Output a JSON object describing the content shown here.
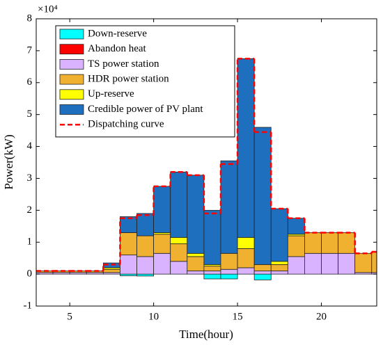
{
  "chart_data": {
    "type": "stacked-bar",
    "xlabel": "Time(hour)",
    "ylabel": "Power(kW)",
    "y_multiplier": "×10⁴",
    "x": [
      3,
      4,
      5,
      6,
      7,
      8,
      9,
      10,
      11,
      12,
      13,
      14,
      15,
      16,
      17,
      18,
      19,
      20,
      21,
      22,
      23
    ],
    "bar_width": 1,
    "series": [
      {
        "name": "Down-reserve",
        "color": "#00ffff",
        "values": [
          0,
          0,
          0,
          0,
          0,
          -500,
          -600,
          0,
          0,
          0,
          -1500,
          -1500,
          0,
          -1800,
          0,
          0,
          0,
          0,
          0,
          0,
          0
        ]
      },
      {
        "name": "Abandon heat",
        "color": "#ff0000",
        "values": [
          0,
          0,
          0,
          0,
          0,
          0,
          0,
          0,
          0,
          0,
          0,
          0,
          0,
          0,
          0,
          0,
          0,
          0,
          0,
          0,
          0
        ]
      },
      {
        "name": "TS power station",
        "color": "#d9b3ff",
        "values": [
          500,
          500,
          500,
          500,
          500,
          6000,
          5500,
          6500,
          4000,
          1000,
          1000,
          1500,
          2000,
          1000,
          1000,
          5500,
          6500,
          6500,
          6500,
          500,
          500
        ]
      },
      {
        "name": "HDR power station",
        "color": "#f0b030",
        "values": [
          500,
          500,
          500,
          500,
          1000,
          7000,
          6500,
          6000,
          5500,
          4500,
          1500,
          5000,
          6000,
          2000,
          2000,
          6500,
          6500,
          6500,
          6500,
          6000,
          6500
        ]
      },
      {
        "name": "Up-reserve",
        "color": "#ffff00",
        "values": [
          0,
          0,
          0,
          0,
          500,
          0,
          0,
          500,
          2000,
          1000,
          500,
          0,
          3500,
          0,
          1000,
          500,
          0,
          0,
          0,
          0,
          0
        ]
      },
      {
        "name": "Credible power of PV plant",
        "color": "#1f6fbf",
        "values": [
          0,
          0,
          0,
          0,
          1500,
          5000,
          7000,
          14500,
          20500,
          24500,
          17000,
          29000,
          56000,
          43000,
          16500,
          5000,
          0,
          0,
          0,
          0,
          0
        ]
      }
    ],
    "dispatch": {
      "name": "Dispatching curve",
      "color": "#ff0000",
      "values": [
        1000,
        1000,
        1000,
        1000,
        3000,
        17500,
        18500,
        27500,
        32000,
        31000,
        19000,
        34500,
        67500,
        44500,
        20500,
        17500,
        13000,
        13000,
        13000,
        6500,
        7000
      ]
    },
    "xlim": [
      3,
      23.3
    ],
    "xticks": [
      5,
      10,
      15,
      20
    ],
    "ylim": [
      -10000,
      80000
    ],
    "yticks": [
      {
        "value": -10000,
        "label": "-1"
      },
      {
        "value": 0,
        "label": "0"
      },
      {
        "value": 10000,
        "label": "1"
      },
      {
        "value": 20000,
        "label": "2"
      },
      {
        "value": 30000,
        "label": "3"
      },
      {
        "value": 40000,
        "label": "4"
      },
      {
        "value": 50000,
        "label": "5"
      },
      {
        "value": 60000,
        "label": "6"
      },
      {
        "value": 70000,
        "label": "7"
      },
      {
        "value": 80000,
        "label": "8"
      }
    ],
    "legend": "upper left"
  }
}
